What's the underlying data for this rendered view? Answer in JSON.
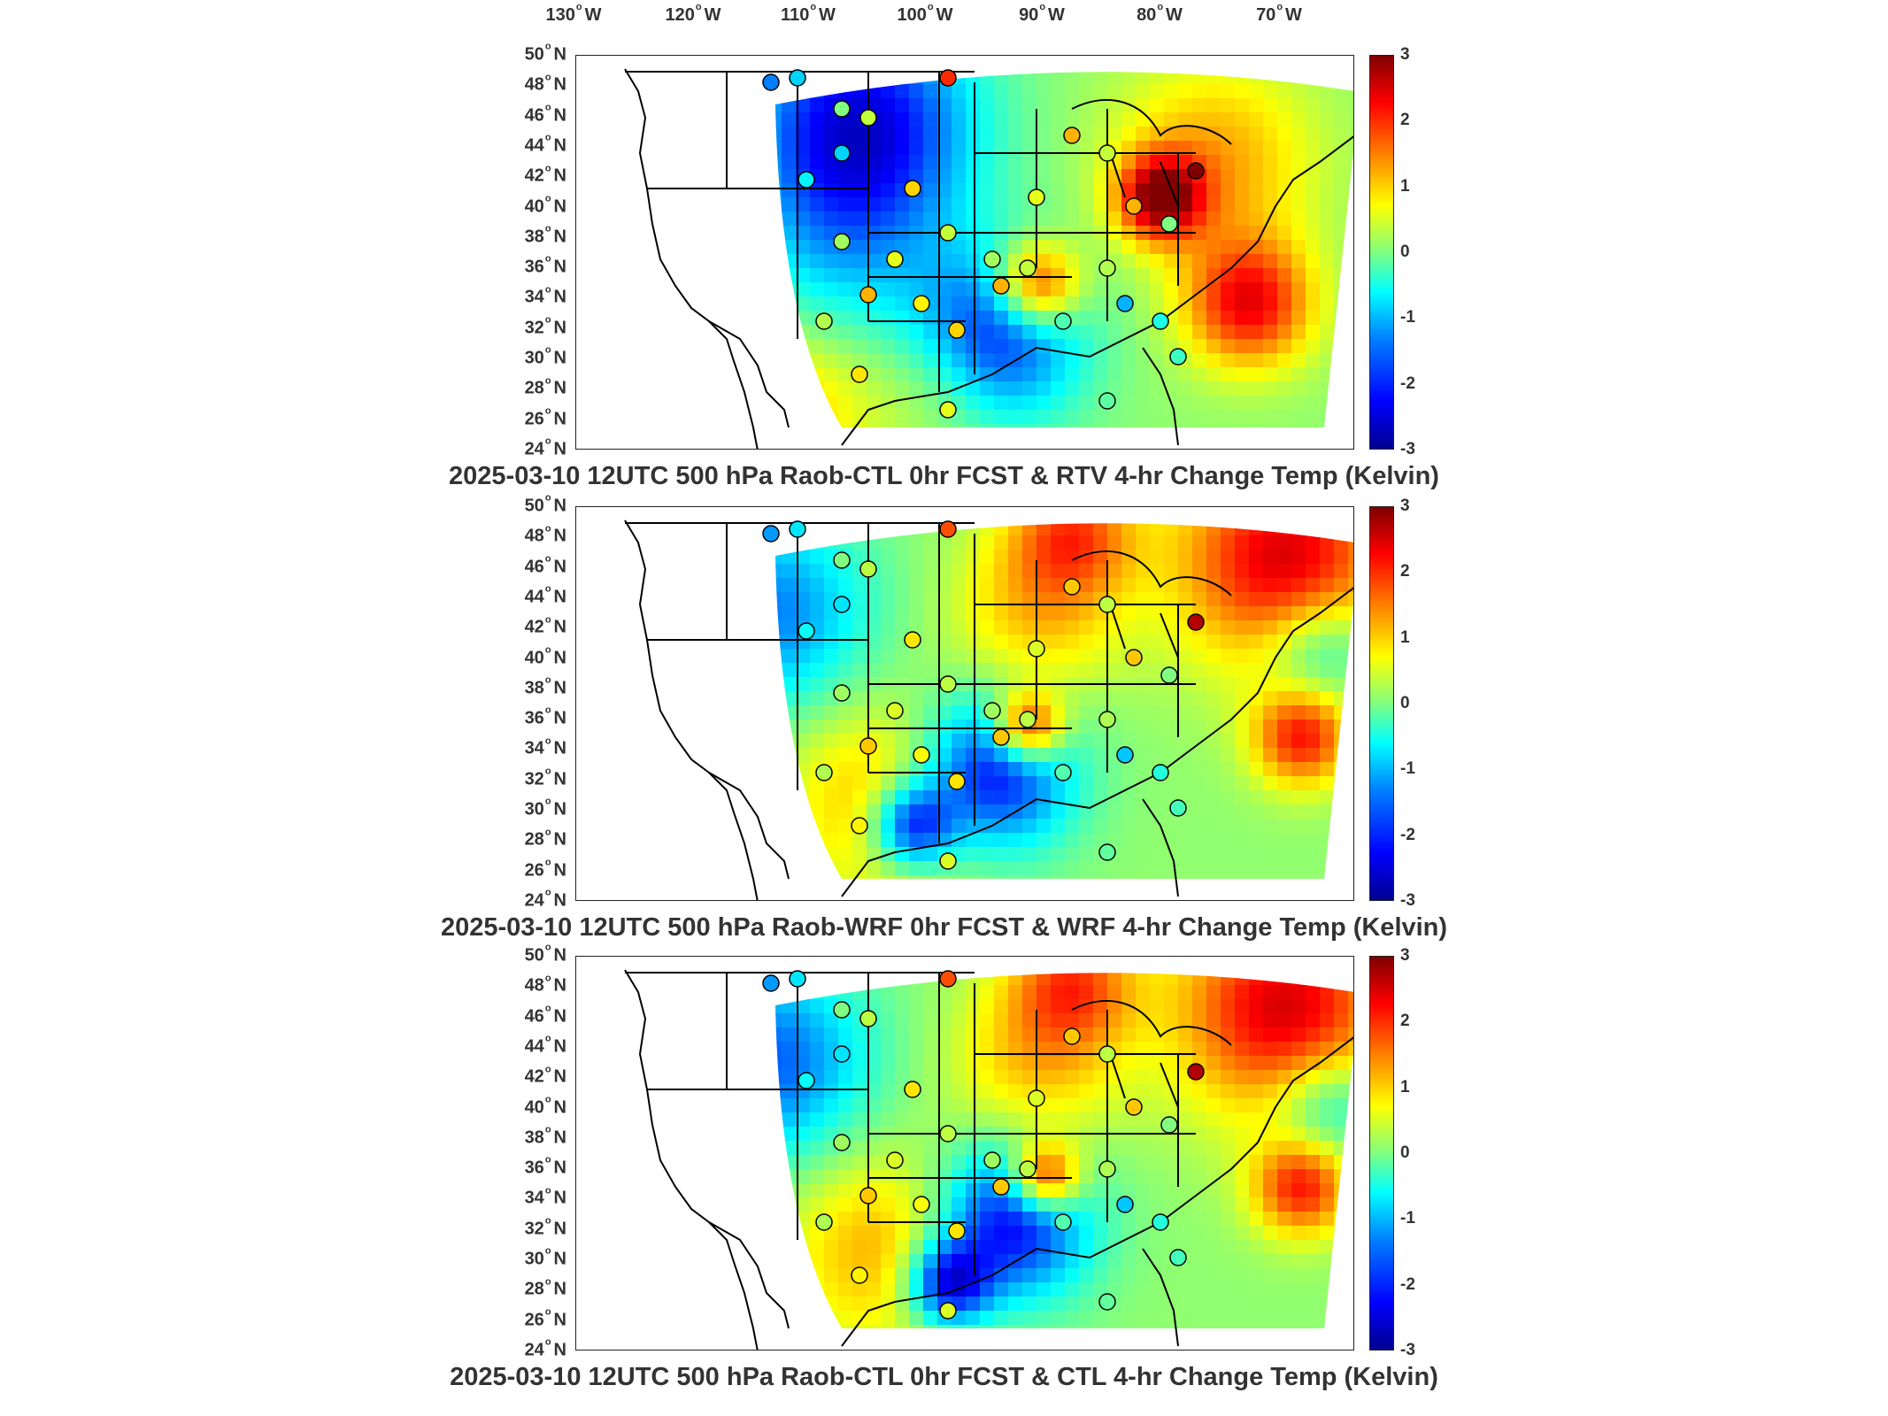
{
  "longitude_labels": [
    {
      "value": "130",
      "unit": "W"
    },
    {
      "value": "120",
      "unit": "W"
    },
    {
      "value": "110",
      "unit": "W"
    },
    {
      "value": "100",
      "unit": "W"
    },
    {
      "value": "90",
      "unit": "W"
    },
    {
      "value": "80",
      "unit": "W"
    },
    {
      "value": "70",
      "unit": "W"
    }
  ],
  "latitude_labels": [
    {
      "value": "50",
      "unit": "N"
    },
    {
      "value": "48",
      "unit": "N"
    },
    {
      "value": "46",
      "unit": "N"
    },
    {
      "value": "44",
      "unit": "N"
    },
    {
      "value": "42",
      "unit": "N"
    },
    {
      "value": "40",
      "unit": "N"
    },
    {
      "value": "38",
      "unit": "N"
    },
    {
      "value": "36",
      "unit": "N"
    },
    {
      "value": "34",
      "unit": "N"
    },
    {
      "value": "32",
      "unit": "N"
    },
    {
      "value": "30",
      "unit": "N"
    },
    {
      "value": "28",
      "unit": "N"
    },
    {
      "value": "26",
      "unit": "N"
    },
    {
      "value": "24",
      "unit": "N"
    }
  ],
  "colorbar": {
    "ticks": [
      "3",
      "2",
      "1",
      "0",
      "-1",
      "-2",
      "-3"
    ],
    "range": [
      -3,
      3
    ],
    "colormap": "jet"
  },
  "panels": [
    {
      "title": "2025-03-10 12UTC 500 hPa Raob-CTL 0hr FCST & RTV 4-hr Change Temp (Kelvin)"
    },
    {
      "title": "2025-03-10 12UTC 500 hPa Raob-WRF 0hr FCST & WRF 4-hr Change Temp (Kelvin)"
    },
    {
      "title": "2025-03-10 12UTC 500 hPa Raob-CTL 0hr FCST & CTL 4-hr Change Temp (Kelvin)"
    }
  ],
  "colors": {
    "land_outline": "#000000",
    "background": "#ffffff"
  }
}
